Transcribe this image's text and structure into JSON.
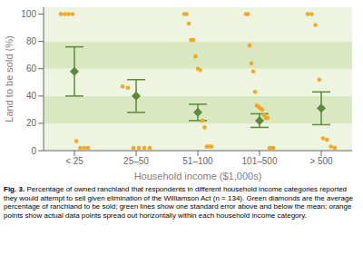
{
  "chart_data": {
    "type": "scatter",
    "x_label": "Household income ($1,000s)",
    "y_label": "Land to be sold (%)",
    "categories": [
      "< 25",
      "25–50",
      "51–100",
      "101–500",
      "> 500"
    ],
    "values": [
      58,
      40,
      28,
      22,
      31
    ],
    "errors": [
      18,
      12,
      6,
      5,
      12
    ],
    "color": "#5A8A3C",
    "marker": "diamond",
    "points": [
      [
        100,
        100,
        100,
        100,
        7,
        2,
        2,
        2
      ],
      [
        47,
        46,
        2,
        2,
        2,
        2
      ],
      [
        100,
        100,
        93,
        81,
        81,
        69,
        60,
        59,
        22,
        17,
        3,
        3,
        3
      ],
      [
        100,
        100,
        77,
        64,
        58,
        43,
        33,
        32,
        31,
        30,
        26,
        24,
        24,
        2,
        2,
        2
      ],
      [
        100,
        100,
        92,
        52,
        9,
        8,
        3,
        2
      ]
    ],
    "points_color": "#F5A623",
    "bands": [
      {
        "y0": 0,
        "y1": 20,
        "color": "#EDF4E0"
      },
      {
        "y0": 20,
        "y1": 40,
        "color": "#D9E8C0"
      },
      {
        "y0": 40,
        "y1": 60,
        "color": "#EDF4E0"
      },
      {
        "y0": 60,
        "y1": 80,
        "color": "#D9E8C0"
      },
      {
        "y0": 80,
        "y1": 105,
        "color": "#EDF4E0"
      }
    ],
    "ylim": [
      0,
      105
    ],
    "yticks": [
      0,
      20,
      40,
      60,
      80,
      100
    ],
    "grid": false,
    "caption_bold": "Fig. 3.",
    "caption": "Percentage of owned ranchland that respondents in different household income categories reported they would attempt to sell given elimination of the Williamson Act (n = 134). Green diamonds are the average percentage of ranchland to be sold; green lines show one standard error above and below the mean; orange points show actual data points spread out horizontally within each household income category."
  }
}
